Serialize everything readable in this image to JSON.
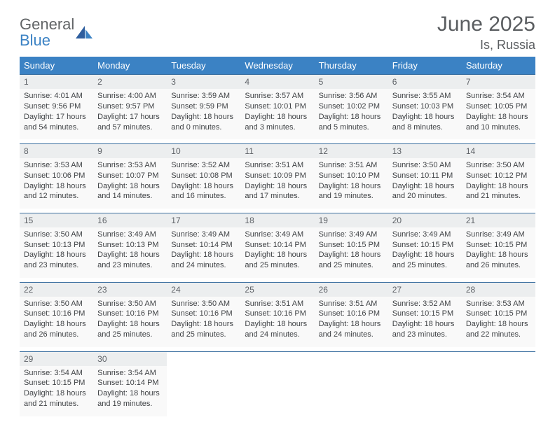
{
  "logo": {
    "text1": "General",
    "text2": "Blue"
  },
  "title": "June 2025",
  "location": "Is, Russia",
  "header_bg": "#3b82c4",
  "header_text_color": "#ffffff",
  "daynum_bg": "#eceeef",
  "daycontent_bg": "#f9f9f9",
  "text_color": "#404346",
  "border_color": "#3b6fa0",
  "day_names": [
    "Sunday",
    "Monday",
    "Tuesday",
    "Wednesday",
    "Thursday",
    "Friday",
    "Saturday"
  ],
  "weeks": [
    [
      {
        "n": "1",
        "sr": "Sunrise: 4:01 AM",
        "ss": "Sunset: 9:56 PM",
        "d1": "Daylight: 17 hours",
        "d2": "and 54 minutes."
      },
      {
        "n": "2",
        "sr": "Sunrise: 4:00 AM",
        "ss": "Sunset: 9:57 PM",
        "d1": "Daylight: 17 hours",
        "d2": "and 57 minutes."
      },
      {
        "n": "3",
        "sr": "Sunrise: 3:59 AM",
        "ss": "Sunset: 9:59 PM",
        "d1": "Daylight: 18 hours",
        "d2": "and 0 minutes."
      },
      {
        "n": "4",
        "sr": "Sunrise: 3:57 AM",
        "ss": "Sunset: 10:01 PM",
        "d1": "Daylight: 18 hours",
        "d2": "and 3 minutes."
      },
      {
        "n": "5",
        "sr": "Sunrise: 3:56 AM",
        "ss": "Sunset: 10:02 PM",
        "d1": "Daylight: 18 hours",
        "d2": "and 5 minutes."
      },
      {
        "n": "6",
        "sr": "Sunrise: 3:55 AM",
        "ss": "Sunset: 10:03 PM",
        "d1": "Daylight: 18 hours",
        "d2": "and 8 minutes."
      },
      {
        "n": "7",
        "sr": "Sunrise: 3:54 AM",
        "ss": "Sunset: 10:05 PM",
        "d1": "Daylight: 18 hours",
        "d2": "and 10 minutes."
      }
    ],
    [
      {
        "n": "8",
        "sr": "Sunrise: 3:53 AM",
        "ss": "Sunset: 10:06 PM",
        "d1": "Daylight: 18 hours",
        "d2": "and 12 minutes."
      },
      {
        "n": "9",
        "sr": "Sunrise: 3:53 AM",
        "ss": "Sunset: 10:07 PM",
        "d1": "Daylight: 18 hours",
        "d2": "and 14 minutes."
      },
      {
        "n": "10",
        "sr": "Sunrise: 3:52 AM",
        "ss": "Sunset: 10:08 PM",
        "d1": "Daylight: 18 hours",
        "d2": "and 16 minutes."
      },
      {
        "n": "11",
        "sr": "Sunrise: 3:51 AM",
        "ss": "Sunset: 10:09 PM",
        "d1": "Daylight: 18 hours",
        "d2": "and 17 minutes."
      },
      {
        "n": "12",
        "sr": "Sunrise: 3:51 AM",
        "ss": "Sunset: 10:10 PM",
        "d1": "Daylight: 18 hours",
        "d2": "and 19 minutes."
      },
      {
        "n": "13",
        "sr": "Sunrise: 3:50 AM",
        "ss": "Sunset: 10:11 PM",
        "d1": "Daylight: 18 hours",
        "d2": "and 20 minutes."
      },
      {
        "n": "14",
        "sr": "Sunrise: 3:50 AM",
        "ss": "Sunset: 10:12 PM",
        "d1": "Daylight: 18 hours",
        "d2": "and 21 minutes."
      }
    ],
    [
      {
        "n": "15",
        "sr": "Sunrise: 3:50 AM",
        "ss": "Sunset: 10:13 PM",
        "d1": "Daylight: 18 hours",
        "d2": "and 23 minutes."
      },
      {
        "n": "16",
        "sr": "Sunrise: 3:49 AM",
        "ss": "Sunset: 10:13 PM",
        "d1": "Daylight: 18 hours",
        "d2": "and 23 minutes."
      },
      {
        "n": "17",
        "sr": "Sunrise: 3:49 AM",
        "ss": "Sunset: 10:14 PM",
        "d1": "Daylight: 18 hours",
        "d2": "and 24 minutes."
      },
      {
        "n": "18",
        "sr": "Sunrise: 3:49 AM",
        "ss": "Sunset: 10:14 PM",
        "d1": "Daylight: 18 hours",
        "d2": "and 25 minutes."
      },
      {
        "n": "19",
        "sr": "Sunrise: 3:49 AM",
        "ss": "Sunset: 10:15 PM",
        "d1": "Daylight: 18 hours",
        "d2": "and 25 minutes."
      },
      {
        "n": "20",
        "sr": "Sunrise: 3:49 AM",
        "ss": "Sunset: 10:15 PM",
        "d1": "Daylight: 18 hours",
        "d2": "and 25 minutes."
      },
      {
        "n": "21",
        "sr": "Sunrise: 3:49 AM",
        "ss": "Sunset: 10:15 PM",
        "d1": "Daylight: 18 hours",
        "d2": "and 26 minutes."
      }
    ],
    [
      {
        "n": "22",
        "sr": "Sunrise: 3:50 AM",
        "ss": "Sunset: 10:16 PM",
        "d1": "Daylight: 18 hours",
        "d2": "and 26 minutes."
      },
      {
        "n": "23",
        "sr": "Sunrise: 3:50 AM",
        "ss": "Sunset: 10:16 PM",
        "d1": "Daylight: 18 hours",
        "d2": "and 25 minutes."
      },
      {
        "n": "24",
        "sr": "Sunrise: 3:50 AM",
        "ss": "Sunset: 10:16 PM",
        "d1": "Daylight: 18 hours",
        "d2": "and 25 minutes."
      },
      {
        "n": "25",
        "sr": "Sunrise: 3:51 AM",
        "ss": "Sunset: 10:16 PM",
        "d1": "Daylight: 18 hours",
        "d2": "and 24 minutes."
      },
      {
        "n": "26",
        "sr": "Sunrise: 3:51 AM",
        "ss": "Sunset: 10:16 PM",
        "d1": "Daylight: 18 hours",
        "d2": "and 24 minutes."
      },
      {
        "n": "27",
        "sr": "Sunrise: 3:52 AM",
        "ss": "Sunset: 10:15 PM",
        "d1": "Daylight: 18 hours",
        "d2": "and 23 minutes."
      },
      {
        "n": "28",
        "sr": "Sunrise: 3:53 AM",
        "ss": "Sunset: 10:15 PM",
        "d1": "Daylight: 18 hours",
        "d2": "and 22 minutes."
      }
    ],
    [
      {
        "n": "29",
        "sr": "Sunrise: 3:54 AM",
        "ss": "Sunset: 10:15 PM",
        "d1": "Daylight: 18 hours",
        "d2": "and 21 minutes."
      },
      {
        "n": "30",
        "sr": "Sunrise: 3:54 AM",
        "ss": "Sunset: 10:14 PM",
        "d1": "Daylight: 18 hours",
        "d2": "and 19 minutes."
      },
      null,
      null,
      null,
      null,
      null
    ]
  ]
}
